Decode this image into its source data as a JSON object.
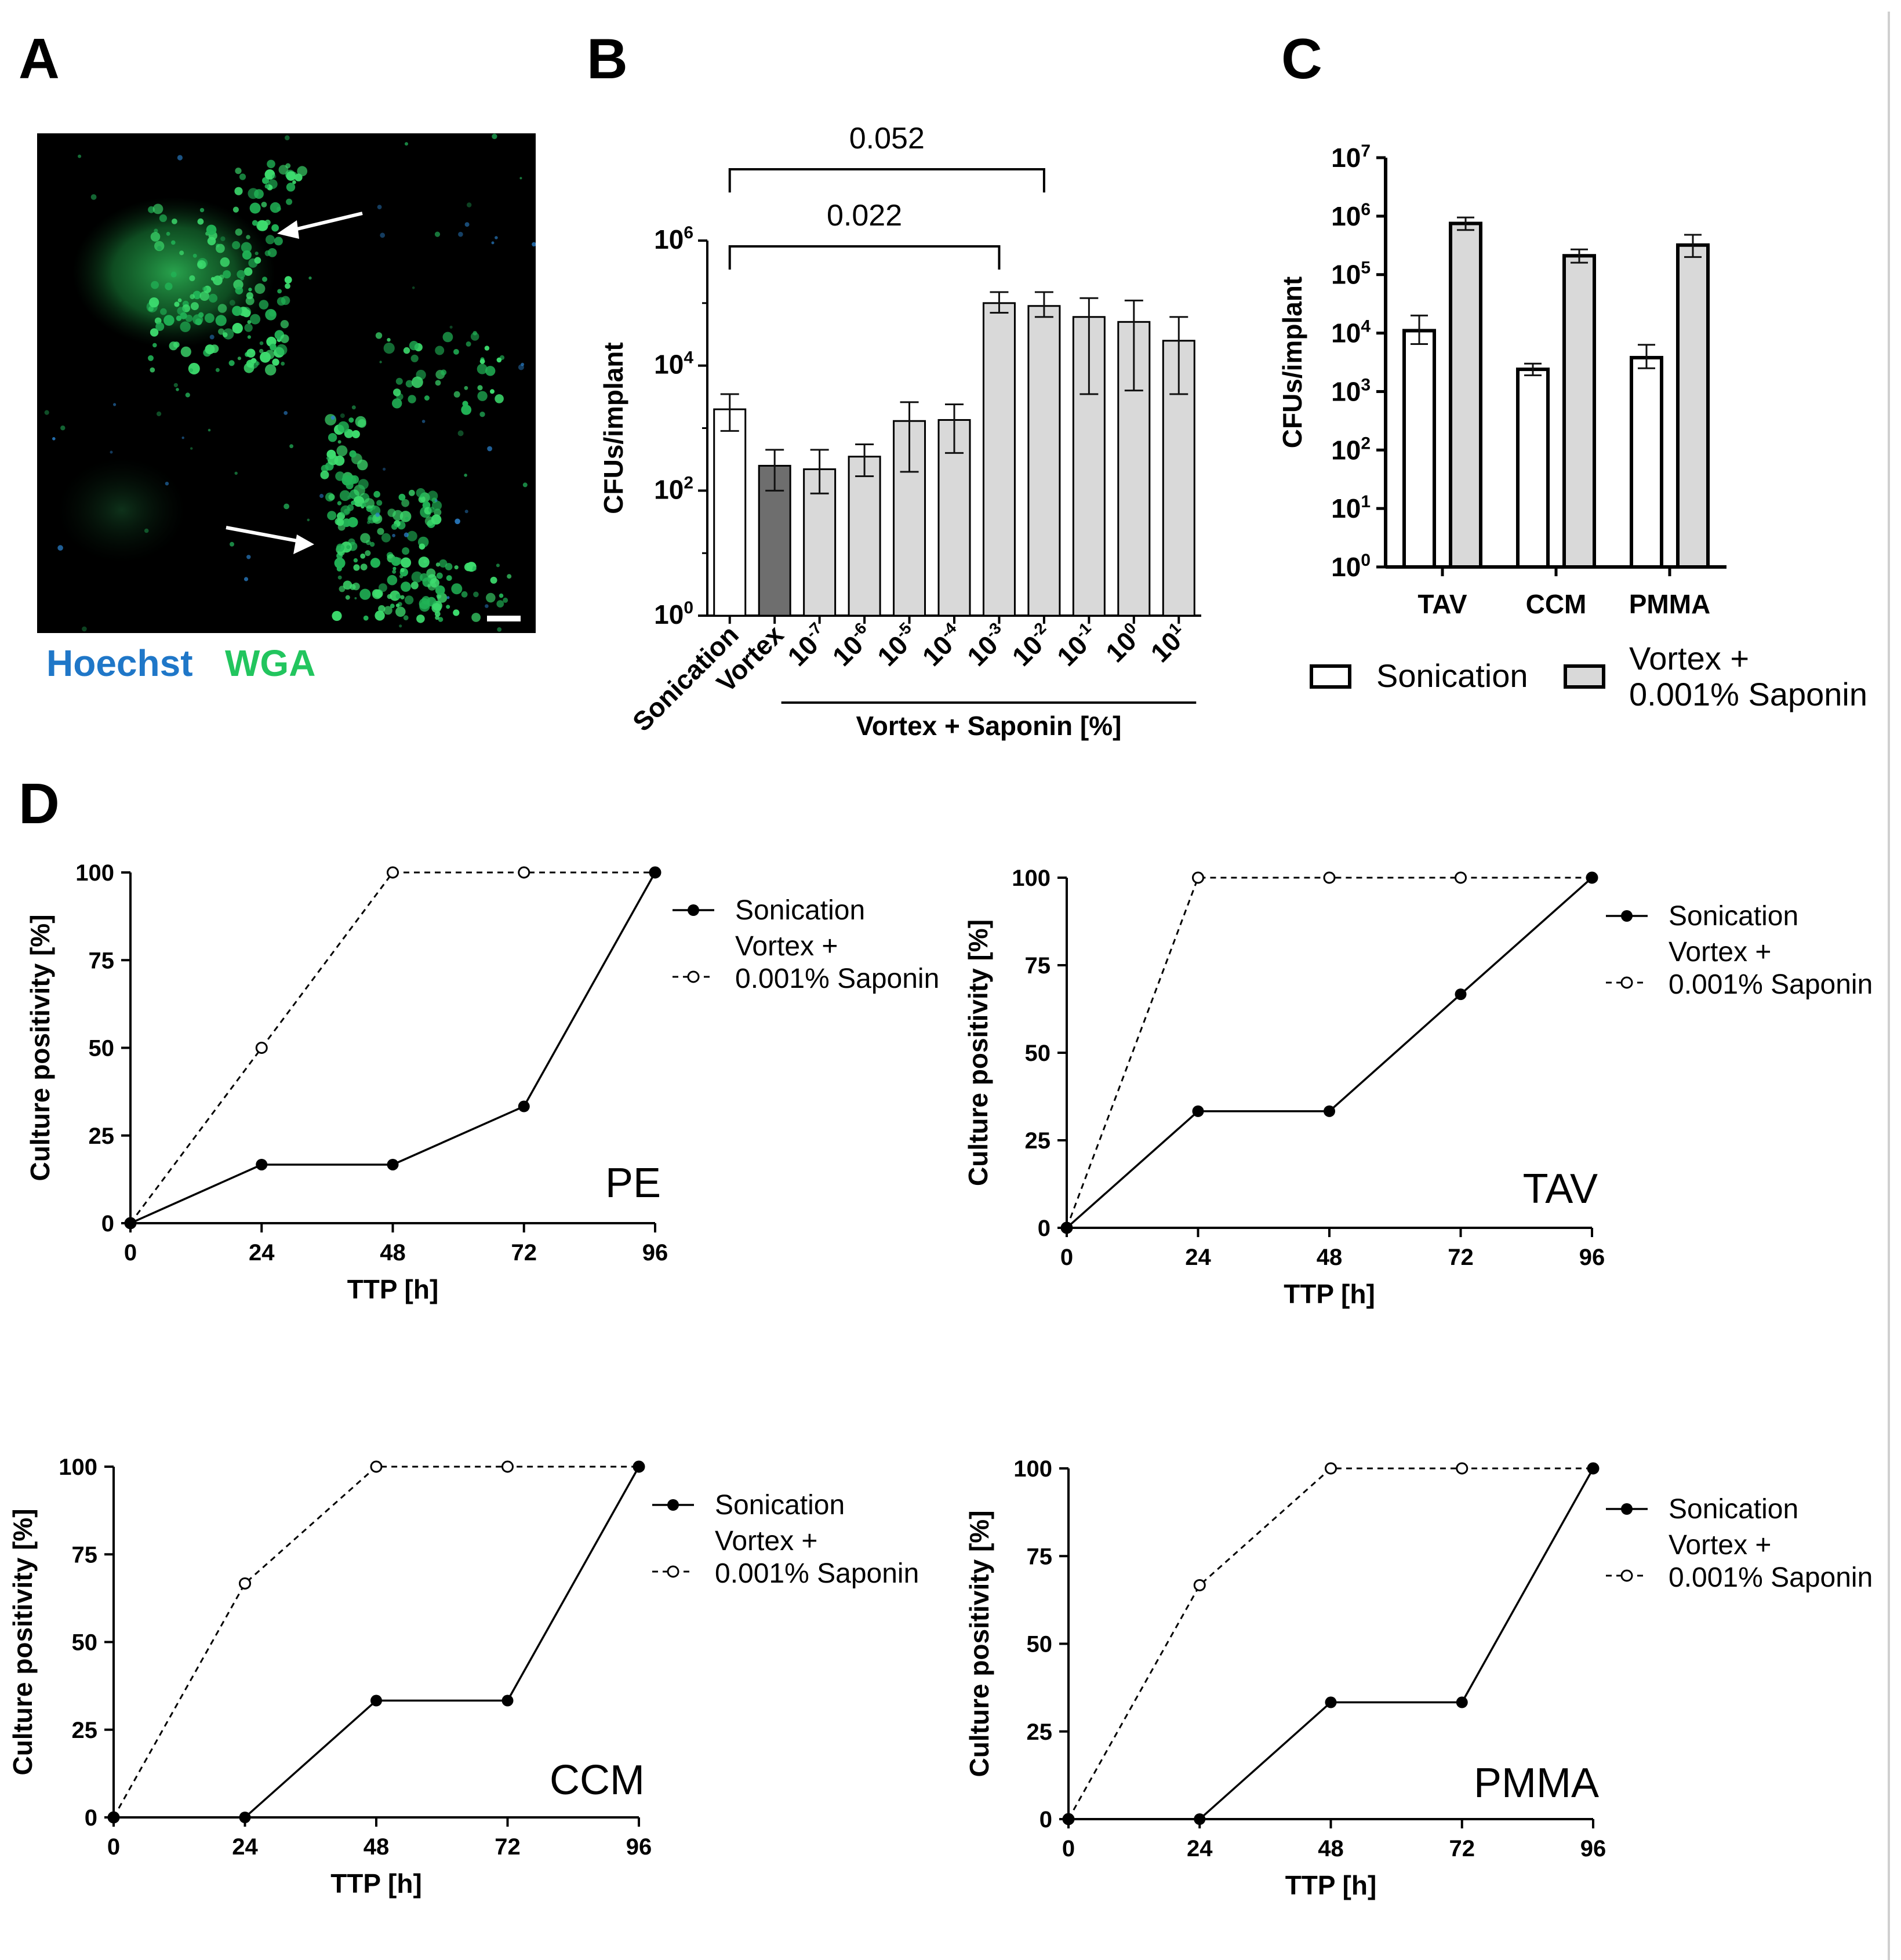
{
  "panels": {
    "a": "A",
    "b": "B",
    "c": "C",
    "d": "D"
  },
  "micrograph": {
    "stains": [
      {
        "name": "Hoechst",
        "color": "#1f77c8"
      },
      {
        "name": "WGA",
        "color": "#22c55e"
      }
    ]
  },
  "chart_data": [
    {
      "id": "B",
      "type": "bar",
      "ylabel": "CFUs/implant",
      "yscale": "log",
      "ylim": [
        1,
        1000000
      ],
      "yticks": [
        {
          "b": "10",
          "e": "0"
        },
        {
          "b": "10",
          "e": "2"
        },
        {
          "b": "10",
          "e": "4"
        },
        {
          "b": "10",
          "e": "6"
        }
      ],
      "categories": [
        {
          "b": "Sonication",
          "e": ""
        },
        {
          "b": "Vortex",
          "e": ""
        },
        {
          "b": "10",
          "e": "-7"
        },
        {
          "b": "10",
          "e": "-6"
        },
        {
          "b": "10",
          "e": "-5"
        },
        {
          "b": "10",
          "e": "-4"
        },
        {
          "b": "10",
          "e": "-3"
        },
        {
          "b": "10",
          "e": "-2"
        },
        {
          "b": "10",
          "e": "-1"
        },
        {
          "b": "10",
          "e": "0"
        },
        {
          "b": "10",
          "e": "1"
        }
      ],
      "group_label": "Vortex + Saponin [%]",
      "values": [
        2000,
        250,
        220,
        350,
        1300,
        1350,
        100000,
        90000,
        60000,
        50000,
        25000
      ],
      "err_low": [
        900,
        100,
        90,
        170,
        200,
        400,
        70000,
        60000,
        3500,
        4000,
        3500
      ],
      "err_high": [
        3500,
        450,
        450,
        550,
        2600,
        2400,
        150000,
        150000,
        120000,
        110000,
        60000
      ],
      "colors": [
        "#ffffff",
        "#6e6e6e",
        "#d9d9d9",
        "#d9d9d9",
        "#d9d9d9",
        "#d9d9d9",
        "#d9d9d9",
        "#d9d9d9",
        "#d9d9d9",
        "#d9d9d9",
        "#d9d9d9"
      ],
      "annotations": [
        {
          "from": 0,
          "to": 6,
          "text": "0.022"
        },
        {
          "from": 0,
          "to": 7,
          "text": "0.052"
        }
      ]
    },
    {
      "id": "C",
      "type": "bar",
      "ylabel": "CFUs/implant",
      "yscale": "log",
      "ylim": [
        1,
        10000000
      ],
      "yticks": [
        {
          "b": "10",
          "e": "0"
        },
        {
          "b": "10",
          "e": "1"
        },
        {
          "b": "10",
          "e": "2"
        },
        {
          "b": "10",
          "e": "3"
        },
        {
          "b": "10",
          "e": "4"
        },
        {
          "b": "10",
          "e": "5"
        },
        {
          "b": "10",
          "e": "6"
        },
        {
          "b": "10",
          "e": "7"
        }
      ],
      "categories": [
        "TAV",
        "CCM",
        "PMMA"
      ],
      "series": [
        {
          "name": "Sonication",
          "color": "#ffffff",
          "values": [
            11000,
            2400,
            3800
          ],
          "err_low": [
            6500,
            1900,
            2500
          ],
          "err_high": [
            20000,
            3000,
            6300
          ]
        },
        {
          "name": "Vortex +\n0.001% Saponin",
          "color": "#d9d9d9",
          "values": [
            750000,
            210000,
            320000
          ],
          "err_low": [
            580000,
            160000,
            200000
          ],
          "err_high": [
            950000,
            270000,
            480000
          ]
        }
      ],
      "legend_position": "bottom"
    },
    {
      "id": "D1",
      "type": "line",
      "title": "PE",
      "xlabel": "TTP [h]",
      "ylabel": "Culture positivity [%]",
      "x": [
        0,
        24,
        48,
        72,
        96
      ],
      "xlim": [
        0,
        96
      ],
      "ylim": [
        0,
        100
      ],
      "xticks": [
        0,
        24,
        48,
        72,
        96
      ],
      "yticks": [
        0,
        25,
        50,
        75,
        100
      ],
      "series": [
        {
          "name": "Sonication",
          "style": "solid-filled",
          "values": [
            0,
            16.7,
            16.7,
            33.3,
            100
          ]
        },
        {
          "name": "Vortex +\n0.001% Saponin",
          "style": "dashed-open",
          "values": [
            0,
            50,
            100,
            100,
            100
          ]
        }
      ]
    },
    {
      "id": "D2",
      "type": "line",
      "title": "TAV",
      "xlabel": "TTP [h]",
      "ylabel": "Culture positivity [%]",
      "x": [
        0,
        24,
        48,
        72,
        96
      ],
      "xlim": [
        0,
        96
      ],
      "ylim": [
        0,
        100
      ],
      "xticks": [
        0,
        24,
        48,
        72,
        96
      ],
      "yticks": [
        0,
        25,
        50,
        75,
        100
      ],
      "series": [
        {
          "name": "Sonication",
          "style": "solid-filled",
          "values": [
            0,
            33.3,
            33.3,
            66.7,
            100
          ]
        },
        {
          "name": "Vortex +\n0.001% Saponin",
          "style": "dashed-open",
          "values": [
            0,
            100,
            100,
            100,
            100
          ]
        }
      ]
    },
    {
      "id": "D3",
      "type": "line",
      "title": "CCM",
      "xlabel": "TTP [h]",
      "ylabel": "Culture positivity [%]",
      "x": [
        0,
        24,
        48,
        72,
        96
      ],
      "xlim": [
        0,
        96
      ],
      "ylim": [
        0,
        100
      ],
      "xticks": [
        0,
        24,
        48,
        72,
        96
      ],
      "yticks": [
        0,
        25,
        50,
        75,
        100
      ],
      "series": [
        {
          "name": "Sonication",
          "style": "solid-filled",
          "values": [
            0,
            0,
            33.3,
            33.3,
            100
          ]
        },
        {
          "name": "Vortex +\n0.001% Saponin",
          "style": "dashed-open",
          "values": [
            0,
            66.7,
            100,
            100,
            100
          ]
        }
      ]
    },
    {
      "id": "D4",
      "type": "line",
      "title": "PMMA",
      "xlabel": "TTP [h]",
      "ylabel": "Culture positivity [%]",
      "x": [
        0,
        24,
        48,
        72,
        96
      ],
      "xlim": [
        0,
        96
      ],
      "ylim": [
        0,
        100
      ],
      "xticks": [
        0,
        24,
        48,
        72,
        96
      ],
      "yticks": [
        0,
        25,
        50,
        75,
        100
      ],
      "series": [
        {
          "name": "Sonication",
          "style": "solid-filled",
          "values": [
            0,
            0,
            33.3,
            33.3,
            100
          ]
        },
        {
          "name": "Vortex +\n0.001% Saponin",
          "style": "dashed-open",
          "values": [
            0,
            66.7,
            100,
            100,
            100
          ]
        }
      ]
    }
  ]
}
